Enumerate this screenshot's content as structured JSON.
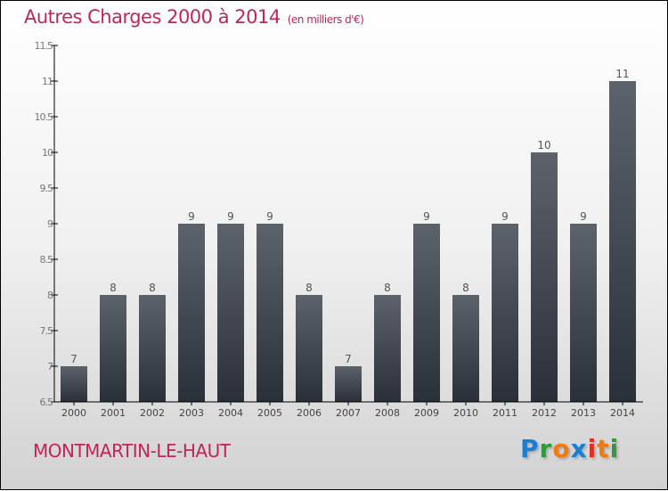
{
  "chart_data": {
    "type": "bar",
    "title": "Autres Charges 2000 à 2014",
    "unit": "(en milliers d'€)",
    "categories": [
      "2000",
      "2001",
      "2002",
      "2003",
      "2004",
      "2005",
      "2006",
      "2007",
      "2008",
      "2009",
      "2010",
      "2011",
      "2012",
      "2013",
      "2014"
    ],
    "values": [
      7,
      8,
      8,
      9,
      9,
      9,
      8,
      7,
      8,
      9,
      8,
      9,
      10,
      9,
      11
    ],
    "ylim": [
      6.5,
      11.5
    ],
    "yticks": [
      "6.5",
      "7",
      "7.5",
      "8",
      "8.5",
      "9",
      "9.5",
      "10",
      "10.5",
      "11",
      "11.5"
    ],
    "xlabel": "",
    "ylabel": "",
    "grid": false,
    "bar_color": "#3a4048"
  },
  "footer": {
    "commune": "MONTMARTIN-LE-HAUT"
  },
  "logo": {
    "text": "Proxiti",
    "letters": [
      "P",
      "r",
      "o",
      "x",
      "i",
      "t",
      "i"
    ],
    "colors": [
      "#1a7fd4",
      "#2e9a3c",
      "#f07a10",
      "#1a7fd4",
      "#e03020",
      "#f07a10",
      "#2e9a3c"
    ]
  }
}
